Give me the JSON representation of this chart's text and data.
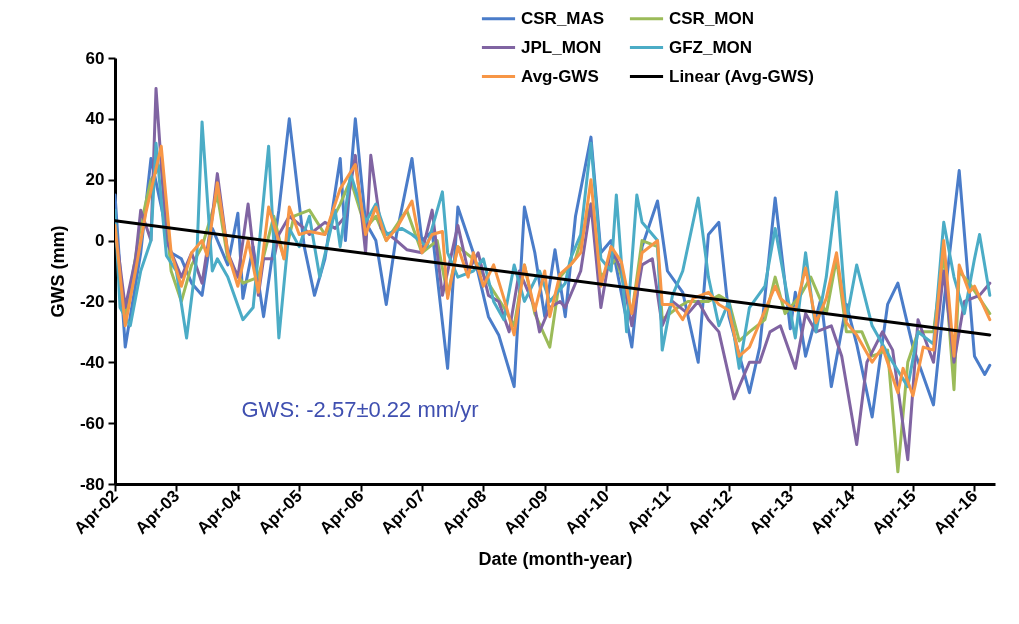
{
  "chart_data": {
    "type": "line",
    "xlabel": "Date (month-year)",
    "ylabel": "GWS (mm)",
    "annotations": [
      "GWS: -2.57±0.22 mm/yr"
    ],
    "legend": "top right",
    "xlim": [
      "2002-04",
      "2016-08"
    ],
    "xticks": [
      {
        "value": "2002-04",
        "label": "Apr-02"
      },
      {
        "value": "2003-04",
        "label": "Apr-03"
      },
      {
        "value": "2004-04",
        "label": "Apr-04"
      },
      {
        "value": "2005-04",
        "label": "Apr-05"
      },
      {
        "value": "2006-04",
        "label": "Apr-06"
      },
      {
        "value": "2007-04",
        "label": "Apr-07"
      },
      {
        "value": "2008-04",
        "label": "Apr-08"
      },
      {
        "value": "2009-04",
        "label": "Apr-09"
      },
      {
        "value": "2010-04",
        "label": "Apr-10"
      },
      {
        "value": "2011-04",
        "label": "Apr-11"
      },
      {
        "value": "2012-04",
        "label": "Apr-12"
      },
      {
        "value": "2013-04",
        "label": "Apr-13"
      },
      {
        "value": "2014-04",
        "label": "Apr-14"
      },
      {
        "value": "2015-04",
        "label": "Apr-15"
      },
      {
        "value": "2016-04",
        "label": "Apr-16"
      }
    ],
    "ylim": [
      -80,
      60
    ],
    "yticks": [
      -80,
      -60,
      -40,
      -20,
      0,
      20,
      40,
      60
    ],
    "series": [
      {
        "name": "CSR_MAS",
        "color": "#4a7cc9",
        "x": [
          "2002-04",
          "2002-06",
          "2002-09",
          "2002-11",
          "2003-03",
          "2003-05",
          "2003-07",
          "2003-09",
          "2003-11",
          "2004-02",
          "2004-04",
          "2004-05",
          "2004-07",
          "2004-09",
          "2004-12",
          "2005-02",
          "2005-05",
          "2005-07",
          "2005-09",
          "2005-12",
          "2006-01",
          "2006-03",
          "2006-05",
          "2006-07",
          "2006-09",
          "2006-11",
          "2007-02",
          "2007-04",
          "2007-06",
          "2007-09",
          "2007-11",
          "2008-02",
          "2008-05",
          "2008-07",
          "2008-10",
          "2008-12",
          "2009-02",
          "2009-04",
          "2009-06",
          "2009-08",
          "2009-10",
          "2010-01",
          "2010-03",
          "2010-05",
          "2010-09",
          "2010-11",
          "2011-02",
          "2011-04",
          "2011-07",
          "2011-10",
          "2011-12",
          "2012-02",
          "2012-04",
          "2012-08",
          "2012-10",
          "2013-01",
          "2013-04",
          "2013-05",
          "2013-07",
          "2013-10",
          "2013-12",
          "2014-03",
          "2014-05",
          "2014-08",
          "2014-11",
          "2015-01",
          "2015-04",
          "2015-08",
          "2015-10",
          "2016-01",
          "2016-04",
          "2016-06",
          "2016-07"
        ],
        "values": [
          15,
          -35,
          -4,
          27,
          -4,
          -6,
          -14,
          -18,
          4,
          -8,
          9,
          -19,
          -2,
          -25,
          10,
          40,
          -2,
          -18,
          -6,
          27,
          0,
          40,
          6,
          0,
          -21,
          2,
          27,
          0,
          3,
          -42,
          11,
          -4,
          -25,
          -31,
          -48,
          11,
          -4,
          -25,
          -3,
          -25,
          8,
          34,
          -4,
          0,
          -35,
          -2,
          13,
          -10,
          -17,
          -40,
          2,
          6,
          -25,
          -50,
          -35,
          14,
          -29,
          -17,
          -38,
          -19,
          -48,
          -21,
          -34,
          -58,
          -21,
          -14,
          -35,
          -54,
          -21,
          23,
          -38,
          -44,
          -41
        ]
      },
      {
        "name": "CSR_MON",
        "color": "#9bbb59",
        "x": [
          "2002-04",
          "2002-06",
          "2002-09",
          "2002-11",
          "2003-01",
          "2003-03",
          "2003-05",
          "2003-07",
          "2003-09",
          "2003-12",
          "2004-02",
          "2004-05",
          "2004-08",
          "2004-11",
          "2005-01",
          "2005-03",
          "2005-06",
          "2005-09",
          "2005-12",
          "2006-02",
          "2006-05",
          "2006-07",
          "2006-09",
          "2007-01",
          "2007-04",
          "2007-07",
          "2007-09",
          "2007-11",
          "2008-02",
          "2008-05",
          "2008-08",
          "2008-10",
          "2008-12",
          "2009-02",
          "2009-05",
          "2009-07",
          "2009-10",
          "2010-01",
          "2010-03",
          "2010-06",
          "2010-09",
          "2010-11",
          "2011-02",
          "2011-03",
          "2011-06",
          "2011-08",
          "2011-12",
          "2012-02",
          "2012-04",
          "2012-06",
          "2012-08",
          "2012-11",
          "2013-01",
          "2013-03",
          "2013-06",
          "2013-08",
          "2013-11",
          "2014-01",
          "2014-03",
          "2014-06",
          "2014-08",
          "2014-11",
          "2015-01",
          "2015-03",
          "2015-05",
          "2015-08",
          "2015-10",
          "2015-12",
          "2016-01",
          "2016-03",
          "2016-07"
        ],
        "values": [
          5,
          -26,
          5,
          20,
          25,
          -10,
          -20,
          -8,
          -2,
          15,
          -6,
          -14,
          -12,
          8,
          -6,
          8,
          10,
          2,
          12,
          20,
          4,
          8,
          0,
          10,
          -4,
          0,
          -18,
          -2,
          -6,
          -14,
          -22,
          -28,
          -8,
          -24,
          -35,
          -12,
          -6,
          12,
          -12,
          -6,
          -24,
          0,
          -2,
          -26,
          -22,
          -20,
          -20,
          -18,
          -20,
          -33,
          -30,
          -26,
          -12,
          -24,
          -18,
          -12,
          -24,
          -6,
          -30,
          -30,
          -38,
          -36,
          -76,
          -40,
          -30,
          -30,
          -4,
          -49,
          -10,
          -14,
          -24
        ]
      },
      {
        "name": "JPL_MON",
        "color": "#8064a2",
        "x": [
          "2002-04",
          "2002-06",
          "2002-08",
          "2002-09",
          "2002-11",
          "2002-12",
          "2003-02",
          "2003-05",
          "2003-07",
          "2003-09",
          "2003-11",
          "2003-12",
          "2004-02",
          "2004-04",
          "2004-06",
          "2004-08",
          "2004-09",
          "2004-11",
          "2004-12",
          "2005-02",
          "2005-05",
          "2005-06",
          "2005-09",
          "2005-11",
          "2006-01",
          "2006-03",
          "2006-05",
          "2006-06",
          "2006-08",
          "2006-11",
          "2007-01",
          "2007-04",
          "2007-06",
          "2007-08",
          "2007-11",
          "2008-01",
          "2008-03",
          "2008-05",
          "2008-07",
          "2008-09",
          "2008-11",
          "2009-02",
          "2009-03",
          "2009-05",
          "2009-07",
          "2009-08",
          "2009-11",
          "2010-01",
          "2010-03",
          "2010-05",
          "2010-07",
          "2010-09",
          "2010-11",
          "2011-01",
          "2011-03",
          "2011-05",
          "2011-08",
          "2011-10",
          "2011-12",
          "2012-02",
          "2012-05",
          "2012-08",
          "2012-10",
          "2012-12",
          "2013-02",
          "2013-05",
          "2013-07",
          "2013-09",
          "2013-12",
          "2014-02",
          "2014-05",
          "2014-07",
          "2014-10",
          "2014-12",
          "2015-03",
          "2015-05",
          "2015-08",
          "2015-10",
          "2015-12",
          "2016-02",
          "2016-05",
          "2016-07"
        ],
        "values": [
          5,
          -22,
          -6,
          10,
          0,
          50,
          0,
          -12,
          -4,
          -14,
          8,
          22,
          -4,
          -12,
          12,
          -18,
          -6,
          -6,
          2,
          8,
          4,
          2,
          6,
          4,
          8,
          28,
          -4,
          28,
          4,
          0,
          -3,
          -4,
          10,
          -18,
          5,
          -10,
          -4,
          -18,
          -20,
          -30,
          -10,
          -22,
          -30,
          -22,
          -20,
          -22,
          -10,
          12,
          -22,
          -2,
          -10,
          -28,
          -8,
          -6,
          -28,
          -20,
          -24,
          -20,
          -26,
          -30,
          -52,
          -40,
          -40,
          -30,
          -28,
          -42,
          -24,
          -30,
          -28,
          -38,
          -67,
          -40,
          -30,
          -36,
          -72,
          -26,
          -40,
          -10,
          -40,
          -20,
          -18,
          -14
        ]
      },
      {
        "name": "GFZ_MON",
        "color": "#4bacc6",
        "x": [
          "2002-04",
          "2002-05",
          "2002-07",
          "2002-09",
          "2002-11",
          "2002-12",
          "2003-02",
          "2003-04",
          "2003-06",
          "2003-08",
          "2003-09",
          "2003-11",
          "2003-12",
          "2004-02",
          "2004-05",
          "2004-07",
          "2004-10",
          "2004-12",
          "2005-02",
          "2005-04",
          "2005-06",
          "2005-08",
          "2005-11",
          "2005-12",
          "2006-02",
          "2006-05",
          "2006-07",
          "2006-09",
          "2006-12",
          "2007-02",
          "2007-05",
          "2007-08",
          "2007-09",
          "2007-11",
          "2008-02",
          "2008-04",
          "2008-06",
          "2008-08",
          "2008-10",
          "2008-12",
          "2009-03",
          "2009-05",
          "2009-08",
          "2009-09",
          "2009-11",
          "2010-01",
          "2010-03",
          "2010-05",
          "2010-06",
          "2010-08",
          "2010-10",
          "2010-11",
          "2011-02",
          "2011-03",
          "2011-05",
          "2011-07",
          "2011-10",
          "2011-12",
          "2012-02",
          "2012-04",
          "2012-06",
          "2012-08",
          "2012-11",
          "2013-01",
          "2013-03",
          "2013-05",
          "2013-07",
          "2013-09",
          "2013-11",
          "2014-01",
          "2014-03",
          "2014-05",
          "2014-08",
          "2014-10",
          "2014-12",
          "2015-03",
          "2015-05",
          "2015-08",
          "2015-10",
          "2015-12",
          "2016-02",
          "2016-04",
          "2016-05",
          "2016-07"
        ],
        "values": [
          10,
          -22,
          -28,
          -10,
          0,
          32,
          -5,
          -10,
          -32,
          -5,
          39,
          -10,
          -6,
          -12,
          -26,
          -22,
          31,
          -32,
          4,
          -2,
          8,
          -12,
          10,
          -2,
          22,
          6,
          12,
          2,
          4,
          2,
          -2,
          16,
          -4,
          -12,
          -10,
          -6,
          -20,
          -26,
          -8,
          -20,
          -10,
          -20,
          -14,
          -6,
          2,
          32,
          -6,
          -10,
          15,
          -30,
          15,
          6,
          0,
          -36,
          -18,
          -10,
          14,
          -12,
          -28,
          -20,
          -42,
          -22,
          -15,
          4,
          -14,
          -32,
          -4,
          -30,
          -12,
          16,
          -26,
          -8,
          -28,
          -34,
          -40,
          -48,
          -30,
          -34,
          6,
          -12,
          -24,
          -6,
          2,
          -18
        ]
      },
      {
        "name": "Avg-GWS",
        "color": "#f79646",
        "x": [
          "2002-04",
          "2002-06",
          "2002-08",
          "2002-10",
          "2003-01",
          "2003-03",
          "2003-05",
          "2003-07",
          "2003-09",
          "2003-10",
          "2003-12",
          "2004-02",
          "2004-04",
          "2004-06",
          "2004-08",
          "2004-10",
          "2005-01",
          "2005-02",
          "2005-04",
          "2005-06",
          "2005-09",
          "2005-12",
          "2006-03",
          "2006-05",
          "2006-07",
          "2006-09",
          "2006-11",
          "2007-02",
          "2007-04",
          "2007-06",
          "2007-08",
          "2007-09",
          "2007-11",
          "2008-01",
          "2008-02",
          "2008-04",
          "2008-06",
          "2008-08",
          "2008-10",
          "2008-12",
          "2009-02",
          "2009-04",
          "2009-05",
          "2009-07",
          "2009-09",
          "2009-11",
          "2010-01",
          "2010-03",
          "2010-05",
          "2010-07",
          "2010-09",
          "2010-11",
          "2011-02",
          "2011-03",
          "2011-05",
          "2011-07",
          "2011-09",
          "2011-12",
          "2012-02",
          "2012-04",
          "2012-06",
          "2012-08",
          "2012-10",
          "2013-01",
          "2013-02",
          "2013-05",
          "2013-07",
          "2013-09",
          "2013-11",
          "2014-01",
          "2014-03",
          "2014-05",
          "2014-08",
          "2014-10",
          "2015-01",
          "2015-02",
          "2015-04",
          "2015-06",
          "2015-08",
          "2015-10",
          "2015-12",
          "2016-01",
          "2016-03",
          "2016-04",
          "2016-07"
        ],
        "values": [
          5,
          -28,
          -10,
          9,
          31,
          -4,
          -15,
          -4,
          0,
          -5,
          19,
          -4,
          -15,
          0,
          -17,
          11,
          -6,
          11,
          2,
          3,
          2,
          17,
          25,
          2,
          11,
          0,
          4,
          13,
          -4,
          2,
          3,
          -19,
          -2,
          -12,
          -4,
          -15,
          -8,
          -19,
          -31,
          -8,
          -23,
          -10,
          -25,
          -11,
          -8,
          -4,
          20,
          -15,
          -2,
          -7,
          -24,
          -4,
          0,
          -21,
          -21,
          -26,
          -19,
          -17,
          -21,
          -23,
          -38,
          -35,
          -27,
          -15,
          -19,
          -23,
          -9,
          -27,
          -19,
          -4,
          -27,
          -31,
          -40,
          -35,
          -50,
          -42,
          -51,
          -35,
          -36,
          0,
          -38,
          -8,
          -17,
          -15,
          -26
        ]
      },
      {
        "name": "Linear (Avg-GWS)",
        "color": "#000000",
        "x": [
          "2002-04",
          "2016-07"
        ],
        "values": [
          6.5,
          -31
        ]
      }
    ]
  }
}
